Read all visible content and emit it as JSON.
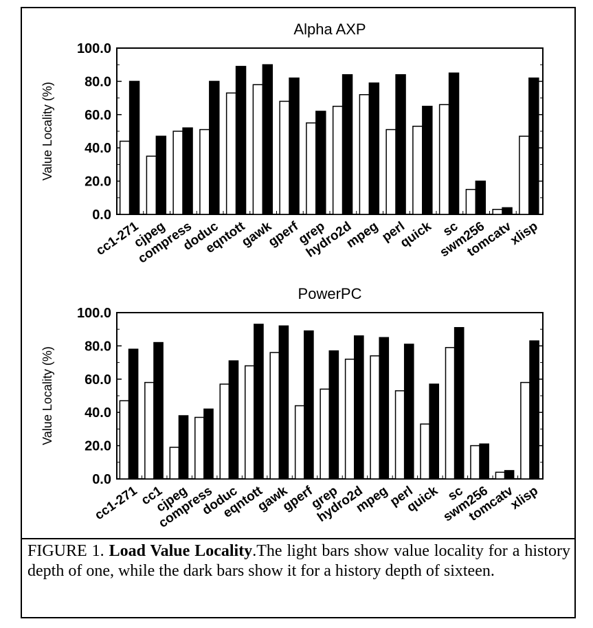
{
  "caption": {
    "label": "FIGURE 1.",
    "title": "Load Value Locality",
    "text": ".The light bars show value locality for a history depth of one, while the dark bars show it for a history depth of sixteen."
  },
  "chart_data": [
    {
      "type": "bar",
      "title": "Alpha AXP",
      "ylabel": "Value Locality (%)",
      "xlabel": "",
      "ylim": [
        0,
        100
      ],
      "yticks": [
        "0.0",
        "20.0",
        "40.0",
        "60.0",
        "80.0",
        "100.0"
      ],
      "categories": [
        "cc1-271",
        "cjpeg",
        "compress",
        "doduc",
        "eqntott",
        "gawk",
        "gperf",
        "grep",
        "hydro2d",
        "mpeg",
        "perl",
        "quick",
        "sc",
        "swm256",
        "tomcatv",
        "xlisp"
      ],
      "series": [
        {
          "values": [
            44,
            35,
            50,
            51,
            73,
            78,
            68,
            55,
            65,
            72,
            51,
            53,
            66,
            15,
            3,
            47
          ],
          "color": "#ffffff"
        },
        {
          "values": [
            80,
            47,
            52,
            80,
            89,
            90,
            82,
            62,
            84,
            79,
            84,
            65,
            85,
            20,
            4,
            82
          ],
          "color": "#000000"
        }
      ],
      "grid": false
    },
    {
      "type": "bar",
      "title": "PowerPC",
      "ylabel": "Value Locality (%)",
      "xlabel": "",
      "ylim": [
        0,
        100
      ],
      "yticks": [
        "0.0",
        "20.0",
        "40.0",
        "60.0",
        "80.0",
        "100.0"
      ],
      "categories": [
        "cc1-271",
        "cc1",
        "cjpeg",
        "compress",
        "doduc",
        "eqntott",
        "gawk",
        "gperf",
        "grep",
        "hydro2d",
        "mpeg",
        "perl",
        "quick",
        "sc",
        "swm256",
        "tomcatv",
        "xlisp"
      ],
      "series": [
        {
          "values": [
            47,
            58,
            19,
            37,
            57,
            68,
            76,
            44,
            54,
            72,
            74,
            53,
            33,
            79,
            20,
            4,
            58
          ],
          "color": "#ffffff"
        },
        {
          "values": [
            78,
            82,
            38,
            42,
            71,
            93,
            92,
            89,
            77,
            86,
            85,
            81,
            57,
            91,
            21,
            5,
            83
          ],
          "color": "#000000"
        }
      ],
      "grid": false
    }
  ]
}
